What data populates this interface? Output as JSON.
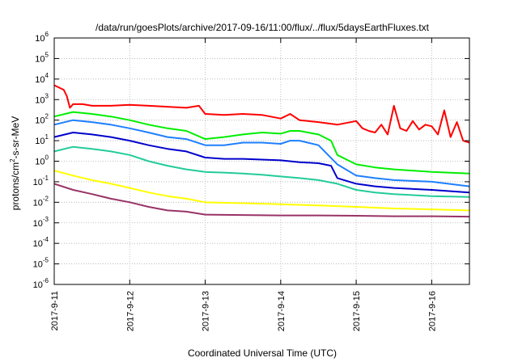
{
  "chart_data": {
    "type": "line",
    "title": "/data/run/goesPlots/archive/2017-09-16/11:00/flux/../flux/5daysEarthFluxes.txt",
    "xlabel": "Coordinated Universal Time (UTC)",
    "ylabel": "protons/cm²-s-sr-MeV",
    "y_scale": "log",
    "ylim": [
      1e-06,
      1000000.0
    ],
    "xlim": [
      "2017-09-11",
      "2017-09-16T12:00"
    ],
    "grid": true,
    "legend": "none",
    "x_ticks": [
      "2017-9-11",
      "2017-9-12",
      "2017-9-13",
      "2017-9-14",
      "2017-9-15",
      "2017-9-16"
    ],
    "y_ticks": [
      {
        "base": "10",
        "exp": "6"
      },
      {
        "base": "10",
        "exp": "5"
      },
      {
        "base": "10",
        "exp": "4"
      },
      {
        "base": "10",
        "exp": "3"
      },
      {
        "base": "10",
        "exp": "2"
      },
      {
        "base": "10",
        "exp": "1"
      },
      {
        "base": "10",
        "exp": "0"
      },
      {
        "base": "10",
        "exp": "-1"
      },
      {
        "base": "10",
        "exp": "-2"
      },
      {
        "base": "10",
        "exp": "-3"
      },
      {
        "base": "10",
        "exp": "-4"
      },
      {
        "base": "10",
        "exp": "-5"
      },
      {
        "base": "10",
        "exp": "-6"
      }
    ],
    "series": [
      {
        "color": "#ff0000",
        "x": [
          "2017-09-11T00:00",
          "2017-09-11T03:00",
          "2017-09-11T04:00",
          "2017-09-11T05:00",
          "2017-09-11T06:00",
          "2017-09-11T09:00",
          "2017-09-11T12:00",
          "2017-09-11T18:00",
          "2017-09-12T00:00",
          "2017-09-12T06:00",
          "2017-09-12T12:00",
          "2017-09-12T18:00",
          "2017-09-12T22:00",
          "2017-09-13T00:00",
          "2017-09-13T06:00",
          "2017-09-13T12:00",
          "2017-09-13T18:00",
          "2017-09-14T00:00",
          "2017-09-14T03:00",
          "2017-09-14T06:00",
          "2017-09-14T12:00",
          "2017-09-14T18:00",
          "2017-09-15T00:00",
          "2017-09-15T02:00",
          "2017-09-15T04:00",
          "2017-09-15T06:00",
          "2017-09-15T08:00",
          "2017-09-15T10:00",
          "2017-09-15T12:00",
          "2017-09-15T14:00",
          "2017-09-15T16:00",
          "2017-09-15T18:00",
          "2017-09-15T20:00",
          "2017-09-15T22:00",
          "2017-09-16T00:00",
          "2017-09-16T02:00",
          "2017-09-16T04:00",
          "2017-09-16T06:00",
          "2017-09-16T08:00",
          "2017-09-16T10:00",
          "2017-09-16T12:00"
        ],
        "y": [
          5000,
          3000,
          1500,
          400,
          600,
          600,
          500,
          500,
          550,
          500,
          450,
          400,
          500,
          200,
          180,
          200,
          180,
          120,
          200,
          100,
          80,
          60,
          90,
          40,
          30,
          25,
          60,
          20,
          500,
          40,
          30,
          90,
          35,
          60,
          50,
          20,
          300,
          15,
          80,
          10,
          8
        ]
      },
      {
        "color": "#00ee00",
        "x": [
          "2017-09-11T00:00",
          "2017-09-11T06:00",
          "2017-09-11T12:00",
          "2017-09-11T18:00",
          "2017-09-12T00:00",
          "2017-09-12T06:00",
          "2017-09-12T12:00",
          "2017-09-12T18:00",
          "2017-09-13T00:00",
          "2017-09-13T06:00",
          "2017-09-13T12:00",
          "2017-09-13T18:00",
          "2017-09-14T00:00",
          "2017-09-14T03:00",
          "2017-09-14T06:00",
          "2017-09-14T12:00",
          "2017-09-14T16:00",
          "2017-09-14T18:00",
          "2017-09-15T00:00",
          "2017-09-15T06:00",
          "2017-09-15T12:00",
          "2017-09-16T00:00",
          "2017-09-16T12:00"
        ],
        "y": [
          150,
          250,
          200,
          150,
          100,
          60,
          40,
          30,
          12,
          15,
          20,
          25,
          22,
          30,
          30,
          20,
          10,
          2,
          0.7,
          0.5,
          0.4,
          0.3,
          0.25
        ]
      },
      {
        "color": "#1e7fff",
        "x": [
          "2017-09-11T00:00",
          "2017-09-11T06:00",
          "2017-09-11T12:00",
          "2017-09-11T18:00",
          "2017-09-12T00:00",
          "2017-09-12T06:00",
          "2017-09-12T12:00",
          "2017-09-12T18:00",
          "2017-09-13T00:00",
          "2017-09-13T06:00",
          "2017-09-13T12:00",
          "2017-09-13T18:00",
          "2017-09-14T00:00",
          "2017-09-14T03:00",
          "2017-09-14T06:00",
          "2017-09-14T12:00",
          "2017-09-14T18:00",
          "2017-09-15T00:00",
          "2017-09-15T06:00",
          "2017-09-15T12:00",
          "2017-09-16T00:00",
          "2017-09-16T12:00"
        ],
        "y": [
          60,
          100,
          80,
          60,
          40,
          25,
          15,
          12,
          6,
          6,
          8,
          8,
          7,
          10,
          10,
          6,
          0.7,
          0.2,
          0.15,
          0.12,
          0.1,
          0.06
        ]
      },
      {
        "color": "#0000cc",
        "x": [
          "2017-09-11T00:00",
          "2017-09-11T06:00",
          "2017-09-11T12:00",
          "2017-09-11T18:00",
          "2017-09-12T00:00",
          "2017-09-12T06:00",
          "2017-09-12T12:00",
          "2017-09-12T18:00",
          "2017-09-13T00:00",
          "2017-09-13T06:00",
          "2017-09-13T12:00",
          "2017-09-13T18:00",
          "2017-09-14T00:00",
          "2017-09-14T06:00",
          "2017-09-14T12:00",
          "2017-09-14T16:00",
          "2017-09-14T18:00",
          "2017-09-15T00:00",
          "2017-09-15T06:00",
          "2017-09-15T12:00",
          "2017-09-16T00:00",
          "2017-09-16T12:00"
        ],
        "y": [
          15,
          25,
          20,
          15,
          10,
          6,
          4,
          3,
          1.5,
          1.3,
          1.3,
          1.2,
          1.1,
          0.9,
          0.8,
          0.6,
          0.15,
          0.08,
          0.06,
          0.05,
          0.04,
          0.03
        ]
      },
      {
        "color": "#22cc99",
        "x": [
          "2017-09-11T00:00",
          "2017-09-11T06:00",
          "2017-09-11T12:00",
          "2017-09-11T18:00",
          "2017-09-12T00:00",
          "2017-09-12T06:00",
          "2017-09-12T12:00",
          "2017-09-12T18:00",
          "2017-09-13T00:00",
          "2017-09-13T06:00",
          "2017-09-13T12:00",
          "2017-09-13T18:00",
          "2017-09-14T00:00",
          "2017-09-14T06:00",
          "2017-09-14T12:00",
          "2017-09-14T18:00",
          "2017-09-15T00:00",
          "2017-09-15T06:00",
          "2017-09-15T12:00",
          "2017-09-16T00:00",
          "2017-09-16T12:00"
        ],
        "y": [
          3,
          5,
          4,
          3,
          2,
          1,
          0.6,
          0.4,
          0.3,
          0.28,
          0.25,
          0.22,
          0.18,
          0.15,
          0.12,
          0.08,
          0.04,
          0.03,
          0.025,
          0.02,
          0.018
        ]
      },
      {
        "color": "#ffff00",
        "x": [
          "2017-09-11T00:00",
          "2017-09-11T06:00",
          "2017-09-11T12:00",
          "2017-09-11T18:00",
          "2017-09-12T00:00",
          "2017-09-12T06:00",
          "2017-09-12T12:00",
          "2017-09-12T18:00",
          "2017-09-13T00:00",
          "2017-09-13T12:00",
          "2017-09-14T00:00",
          "2017-09-14T12:00",
          "2017-09-15T00:00",
          "2017-09-15T12:00",
          "2017-09-16T00:00",
          "2017-09-16T12:00"
        ],
        "y": [
          0.35,
          0.2,
          0.12,
          0.08,
          0.05,
          0.03,
          0.02,
          0.015,
          0.01,
          0.009,
          0.008,
          0.007,
          0.006,
          0.005,
          0.0045,
          0.004
        ]
      },
      {
        "color": "#993366",
        "x": [
          "2017-09-11T00:00",
          "2017-09-11T06:00",
          "2017-09-11T12:00",
          "2017-09-11T18:00",
          "2017-09-12T00:00",
          "2017-09-12T06:00",
          "2017-09-12T12:00",
          "2017-09-12T18:00",
          "2017-09-13T00:00",
          "2017-09-13T12:00",
          "2017-09-14T00:00",
          "2017-09-14T12:00",
          "2017-09-15T00:00",
          "2017-09-15T12:00",
          "2017-09-16T00:00",
          "2017-09-16T12:00"
        ],
        "y": [
          0.08,
          0.04,
          0.025,
          0.015,
          0.01,
          0.006,
          0.004,
          0.0035,
          0.0025,
          0.0024,
          0.0023,
          0.0023,
          0.0022,
          0.0021,
          0.0021,
          0.002
        ]
      }
    ]
  }
}
